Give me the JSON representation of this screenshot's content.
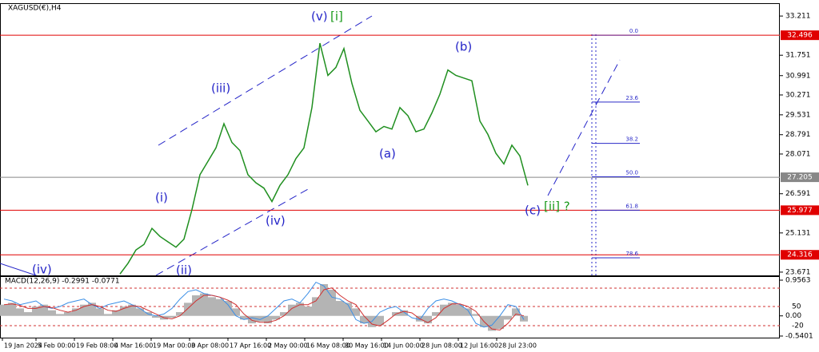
{
  "chart_data": [
    {
      "type": "line",
      "title": "XAGUSD(€),H4",
      "values": [
        23.6,
        24.0,
        24.5,
        24.7,
        25.3,
        25.0,
        24.8,
        24.6,
        24.9,
        26.0,
        27.3,
        27.8,
        28.3,
        29.2,
        28.5,
        28.2,
        27.3,
        27.0,
        26.8,
        26.3,
        26.9,
        27.3,
        27.9,
        28.3,
        29.8,
        32.2,
        31.0,
        31.3,
        32.0,
        30.7,
        29.7,
        29.3,
        28.9,
        29.1,
        29.0,
        29.8,
        29.5,
        28.9,
        29.0,
        29.6,
        30.3,
        31.2,
        31.0,
        30.9,
        30.8,
        29.3,
        28.8,
        28.1,
        27.7,
        28.4,
        28.0,
        26.9
      ],
      "color": "#1f8f1f",
      "ylim": [
        23.55,
        33.66
      ],
      "yticks": [
        33.211,
        31.751,
        30.991,
        30.271,
        29.531,
        28.791,
        28.071,
        26.591,
        25.131,
        23.671
      ],
      "price_levels": [
        {
          "value": 32.496,
          "color": "#e00000"
        },
        {
          "value": 27.205,
          "color": "#888888"
        },
        {
          "value": 25.977,
          "color": "#e00000"
        },
        {
          "value": 24.316,
          "color": "#e00000"
        }
      ],
      "fib_levels": [
        {
          "value": 0,
          "label": "0.0"
        },
        23.6,
        38.2,
        {
          "value": 50,
          "label": "50.0"
        },
        61.8,
        78.6
      ],
      "fib_color": "#2a2ac8",
      "annotations": [
        "(iv)",
        "(ii)",
        "(i)",
        "(iii)",
        "(iv)",
        "(v)",
        "[i]",
        "(a)",
        "(b)",
        "(c)",
        "[ii] ?"
      ],
      "xticks": [
        "19 Jan 2024",
        "5 Feb 00:00",
        "19 Feb 08:00",
        "4 Mar 16:00",
        "19 Mar 00:00",
        "3 Apr 08:00",
        "17 Apr 16:00",
        "2 May 00:00",
        "16 May 08:00",
        "30 May 16:00",
        "14 Jun 00:00",
        "28 Jun 08:00",
        "12 Jul 16:00",
        "28 Jul 23:00"
      ]
    },
    {
      "type": "macd",
      "title": "MACD(12,26,9) -0.2991 -0.0771",
      "ylim": [
        -0.5401,
        0.9563
      ],
      "yticks": [
        0.9563,
        {
          "value": 0,
          "label": "0.00"
        },
        -0.5401
      ],
      "overlay_levels": [
        50,
        -20
      ],
      "series": [
        {
          "name": "histogram",
          "color": "#b4b4b4",
          "values": [
            0.3,
            0.35,
            0.2,
            0.1,
            0.25,
            0.3,
            0.15,
            0.05,
            0.1,
            0.2,
            0.3,
            0.35,
            0.2,
            0.05,
            0.15,
            0.25,
            0.3,
            0.2,
            0.1,
            -0.05,
            -0.1,
            -0.05,
            0.1,
            0.35,
            0.55,
            0.6,
            0.5,
            0.45,
            0.4,
            0.2,
            -0.1,
            -0.2,
            -0.15,
            -0.2,
            -0.1,
            0.1,
            0.3,
            0.35,
            0.25,
            0.5,
            0.85,
            0.7,
            0.4,
            0.35,
            0.2,
            -0.2,
            -0.3,
            -0.25,
            0.0,
            0.1,
            0.15,
            0.0,
            -0.15,
            -0.2,
            0.1,
            0.3,
            0.35,
            0.3,
            0.2,
            0.05,
            -0.3,
            -0.4,
            -0.35,
            -0.1,
            0.2,
            -0.15
          ]
        },
        {
          "name": "main",
          "color": "#3a8ee6",
          "values": [
            0.45,
            0.4,
            0.3,
            0.35,
            0.4,
            0.25,
            0.2,
            0.25,
            0.35,
            0.4,
            0.45,
            0.3,
            0.2,
            0.3,
            0.35,
            0.4,
            0.3,
            0.2,
            0.05,
            0.0,
            0.05,
            0.2,
            0.45,
            0.65,
            0.7,
            0.6,
            0.55,
            0.5,
            0.3,
            0.0,
            -0.1,
            -0.05,
            -0.1,
            0.0,
            0.2,
            0.4,
            0.45,
            0.35,
            0.6,
            0.9,
            0.8,
            0.5,
            0.45,
            0.3,
            -0.1,
            -0.2,
            -0.15,
            0.1,
            0.2,
            0.25,
            0.1,
            -0.05,
            -0.1,
            0.2,
            0.4,
            0.45,
            0.4,
            0.3,
            0.15,
            -0.2,
            -0.3,
            -0.25,
            0.0,
            0.3,
            0.25,
            -0.1
          ]
        },
        {
          "name": "signal",
          "color": "#d03030",
          "values": [
            0.3,
            0.32,
            0.28,
            0.2,
            0.2,
            0.25,
            0.22,
            0.15,
            0.1,
            0.15,
            0.25,
            0.3,
            0.25,
            0.15,
            0.12,
            0.2,
            0.27,
            0.25,
            0.15,
            0.05,
            -0.05,
            -0.08,
            0.0,
            0.2,
            0.4,
            0.55,
            0.55,
            0.5,
            0.42,
            0.3,
            0.05,
            -0.12,
            -0.17,
            -0.17,
            -0.12,
            0.0,
            0.2,
            0.3,
            0.3,
            0.4,
            0.7,
            0.75,
            0.55,
            0.4,
            0.3,
            0.0,
            -0.22,
            -0.27,
            -0.12,
            0.05,
            0.12,
            0.08,
            -0.08,
            -0.18,
            -0.05,
            0.2,
            0.32,
            0.32,
            0.25,
            0.12,
            -0.15,
            -0.35,
            -0.38,
            -0.2,
            0.05,
            0.0
          ]
        }
      ]
    }
  ]
}
